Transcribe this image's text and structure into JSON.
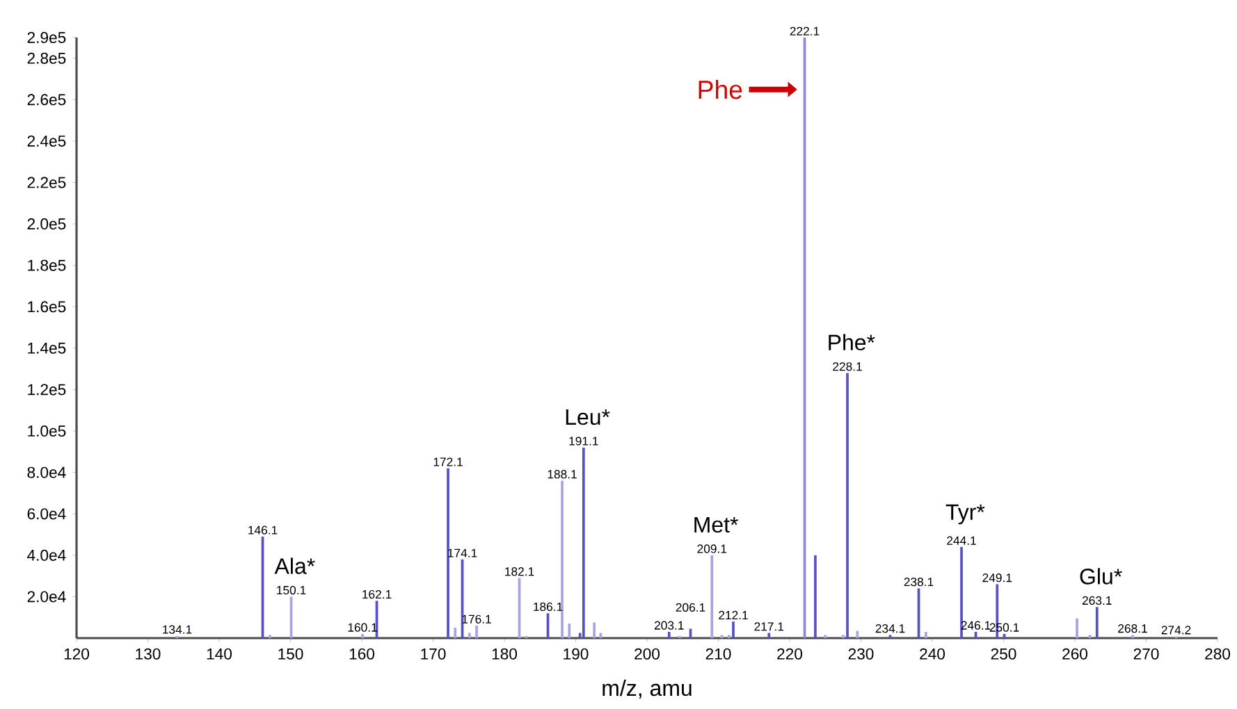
{
  "chart_data": {
    "type": "bar",
    "xlabel": "m/z, amu",
    "x": [
      134.1,
      146.1,
      147.1,
      150.1,
      160.1,
      162.1,
      172.1,
      173.1,
      174.1,
      175.1,
      176.1,
      182.1,
      183.1,
      186.1,
      188.1,
      189.1,
      190.6,
      191.1,
      192.6,
      193.5,
      203.1,
      204.6,
      206.1,
      209.1,
      210.5,
      211.5,
      212.1,
      217.1,
      222.1,
      223.6,
      225,
      227.5,
      228.1,
      229.5,
      234.1,
      238.1,
      239.1,
      244.1,
      246.1,
      249.1,
      250.1,
      260.3,
      262.1,
      263.1,
      268.1,
      274.2
    ],
    "values": [
      1000,
      49000,
      1500,
      20000,
      2000,
      18000,
      82000,
      5000,
      38000,
      2500,
      6000,
      29000,
      1000,
      12000,
      76000,
      7000,
      2500,
      92000,
      7500,
      2500,
      3000,
      1000,
      4500,
      40000,
      1500,
      1500,
      8000,
      2500,
      290000,
      40000,
      1500,
      1500,
      128000,
      3500,
      1500,
      24000,
      3000,
      44000,
      3000,
      26000,
      2000,
      9500,
      1500,
      15000,
      1500,
      800
    ],
    "colors": [
      "#a7a4e2",
      "#5652c4",
      "#a7a4e2",
      "#a7a4e2",
      "#a7a4e2",
      "#5652c4",
      "#5652c4",
      "#a7a4e2",
      "#5652c4",
      "#a7a4e2",
      "#a7a4e2",
      "#a7a4e2",
      "#a7a4e2",
      "#5652c4",
      "#a7a4e2",
      "#a7a4e2",
      "#5652c4",
      "#5652c4",
      "#a7a4e2",
      "#a7a4e2",
      "#5652c4",
      "#a7a4e2",
      "#5652c4",
      "#a7a4e2",
      "#a7a4e2",
      "#a7a4e2",
      "#5652c4",
      "#5652c4",
      "#8b88dd",
      "#5652c4",
      "#a7a4e2",
      "#a7a4e2",
      "#5652c4",
      "#a7a4e2",
      "#5652c4",
      "#5652c4",
      "#a7a4e2",
      "#5652c4",
      "#5652c4",
      "#5652c4",
      "#5652c4",
      "#a7a4e2",
      "#a7a4e2",
      "#5652c4",
      "#a7a4e2",
      "#a7a4e2"
    ],
    "xlim": [
      120,
      280
    ],
    "xticks": [
      120,
      130,
      140,
      150,
      160,
      170,
      180,
      190,
      200,
      210,
      220,
      230,
      240,
      250,
      260,
      270,
      280
    ],
    "ylim": [
      0,
      290000
    ],
    "yticks": [
      {
        "value": 20000,
        "label": "2.0e4"
      },
      {
        "value": 40000,
        "label": "4.0e4"
      },
      {
        "value": 60000,
        "label": "6.0e4"
      },
      {
        "value": 80000,
        "label": "8.0e4"
      },
      {
        "value": 100000,
        "label": "1.0e5"
      },
      {
        "value": 120000,
        "label": "1.2e5"
      },
      {
        "value": 140000,
        "label": "1.4e5"
      },
      {
        "value": 160000,
        "label": "1.6e5"
      },
      {
        "value": 180000,
        "label": "1.8e5"
      },
      {
        "value": 200000,
        "label": "2.0e5"
      },
      {
        "value": 220000,
        "label": "2.2e5"
      },
      {
        "value": 240000,
        "label": "2.4e5"
      },
      {
        "value": 260000,
        "label": "2.6e5"
      },
      {
        "value": 280000,
        "label": "2.8e5"
      },
      {
        "value": 290000,
        "label": "2.9e5"
      }
    ],
    "annotations": [
      {
        "text": "Phe",
        "x": 222.1,
        "y": 290000
      },
      {
        "text": "Ala*",
        "x": 150.1,
        "y": 20000
      },
      {
        "text": "Leu*",
        "x": 191.1,
        "y": 92000
      },
      {
        "text": "Met*",
        "x": 209.1,
        "y": 40000
      },
      {
        "text": "Phe*",
        "x": 228.1,
        "y": 128000
      },
      {
        "text": "Tyr*",
        "x": 244.1,
        "y": 44000
      },
      {
        "text": "Glu*",
        "x": 263.1,
        "y": 15000
      },
      {
        "text": "134.1",
        "x": 134.1,
        "y": 1000
      },
      {
        "text": "146.1",
        "x": 146.1,
        "y": 49000
      },
      {
        "text": "150.1",
        "x": 150.1,
        "y": 20000
      },
      {
        "text": "160.1",
        "x": 160.1,
        "y": 2000
      },
      {
        "text": "162.1",
        "x": 162.1,
        "y": 18000
      },
      {
        "text": "172.1",
        "x": 172.1,
        "y": 82000
      },
      {
        "text": "174.1",
        "x": 174.1,
        "y": 38000
      },
      {
        "text": "176.1",
        "x": 176.1,
        "y": 6000
      },
      {
        "text": "182.1",
        "x": 182.1,
        "y": 29000
      },
      {
        "text": "186.1",
        "x": 186.1,
        "y": 12000
      },
      {
        "text": "188.1",
        "x": 188.1,
        "y": 76000
      },
      {
        "text": "191.1",
        "x": 191.1,
        "y": 92000
      },
      {
        "text": "203.1",
        "x": 203.1,
        "y": 3000
      },
      {
        "text": "206.1",
        "x": 206.1,
        "y": 4500
      },
      {
        "text": "209.1",
        "x": 209.1,
        "y": 40000
      },
      {
        "text": "212.1",
        "x": 212.1,
        "y": 8000
      },
      {
        "text": "217.1",
        "x": 217.1,
        "y": 2500
      },
      {
        "text": "222.1",
        "x": 222.1,
        "y": 290000
      },
      {
        "text": "228.1",
        "x": 228.1,
        "y": 128000
      },
      {
        "text": "234.1",
        "x": 234.1,
        "y": 1500
      },
      {
        "text": "238.1",
        "x": 238.1,
        "y": 24000
      },
      {
        "text": "244.1",
        "x": 244.1,
        "y": 44000
      },
      {
        "text": "246.1",
        "x": 246.1,
        "y": 3000
      },
      {
        "text": "249.1",
        "x": 249.1,
        "y": 26000
      },
      {
        "text": "250.1",
        "x": 250.1,
        "y": 2000
      },
      {
        "text": "263.1",
        "x": 263.1,
        "y": 15000
      },
      {
        "text": "268.1",
        "x": 268.1,
        "y": 1500
      },
      {
        "text": "274.2",
        "x": 274.2,
        "y": 800
      }
    ]
  }
}
